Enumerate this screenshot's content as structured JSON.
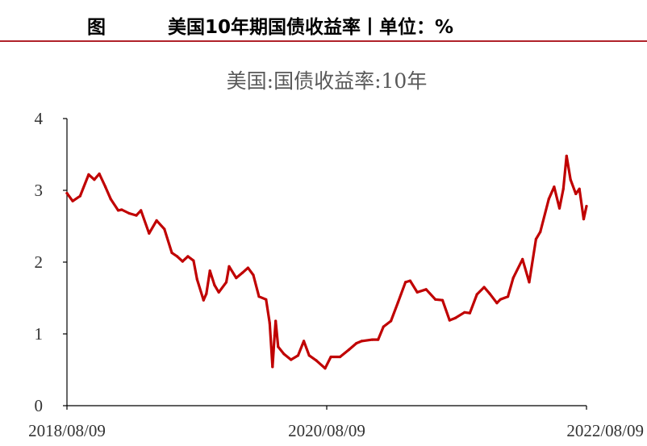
{
  "header": {
    "label": "图",
    "title": "美国10年期国债收益率丨单位：%",
    "accent_color": "#b0222a"
  },
  "chart_data": {
    "type": "line",
    "title": "美国:国债收益率:10年",
    "xlabel": "",
    "ylabel": "",
    "x_range": [
      "2018-08-09",
      "2022-08-09"
    ],
    "x_ticks": [
      "2018/08/09",
      "2020/08/09",
      "2022/08/09"
    ],
    "ylim": [
      0,
      4
    ],
    "y_ticks": [
      "0",
      "1",
      "2",
      "3",
      "4"
    ],
    "grid": false,
    "legend": "none",
    "series": [
      {
        "color": "#c00000",
        "points": [
          [
            "2018-08-09",
            2.96
          ],
          [
            "2018-08-25",
            2.85
          ],
          [
            "2018-09-15",
            2.92
          ],
          [
            "2018-10-09",
            3.22
          ],
          [
            "2018-10-25",
            3.15
          ],
          [
            "2018-11-08",
            3.23
          ],
          [
            "2018-11-25",
            3.05
          ],
          [
            "2018-12-10",
            2.88
          ],
          [
            "2018-12-31",
            2.72
          ],
          [
            "2019-01-10",
            2.73
          ],
          [
            "2019-01-31",
            2.68
          ],
          [
            "2019-02-20",
            2.65
          ],
          [
            "2019-03-05",
            2.72
          ],
          [
            "2019-03-28",
            2.4
          ],
          [
            "2019-04-18",
            2.58
          ],
          [
            "2019-05-10",
            2.46
          ],
          [
            "2019-05-31",
            2.13
          ],
          [
            "2019-06-15",
            2.08
          ],
          [
            "2019-06-30",
            2.01
          ],
          [
            "2019-07-15",
            2.08
          ],
          [
            "2019-07-31",
            2.02
          ],
          [
            "2019-08-10",
            1.76
          ],
          [
            "2019-08-28",
            1.47
          ],
          [
            "2019-09-05",
            1.56
          ],
          [
            "2019-09-15",
            1.88
          ],
          [
            "2019-09-28",
            1.68
          ],
          [
            "2019-10-10",
            1.58
          ],
          [
            "2019-10-31",
            1.72
          ],
          [
            "2019-11-08",
            1.94
          ],
          [
            "2019-11-28",
            1.78
          ],
          [
            "2019-12-15",
            1.85
          ],
          [
            "2019-12-31",
            1.92
          ],
          [
            "2020-01-15",
            1.82
          ],
          [
            "2020-01-31",
            1.52
          ],
          [
            "2020-02-20",
            1.48
          ],
          [
            "2020-03-01",
            1.15
          ],
          [
            "2020-03-09",
            0.54
          ],
          [
            "2020-03-15",
            0.98
          ],
          [
            "2020-03-18",
            1.18
          ],
          [
            "2020-03-25",
            0.82
          ],
          [
            "2020-04-10",
            0.72
          ],
          [
            "2020-04-30",
            0.64
          ],
          [
            "2020-05-20",
            0.7
          ],
          [
            "2020-06-05",
            0.9
          ],
          [
            "2020-06-20",
            0.7
          ],
          [
            "2020-07-10",
            0.63
          ],
          [
            "2020-08-04",
            0.52
          ],
          [
            "2020-08-20",
            0.68
          ],
          [
            "2020-09-15",
            0.68
          ],
          [
            "2020-10-10",
            0.78
          ],
          [
            "2020-10-31",
            0.87
          ],
          [
            "2020-11-15",
            0.9
          ],
          [
            "2020-12-15",
            0.92
          ],
          [
            "2020-12-31",
            0.92
          ],
          [
            "2021-01-15",
            1.1
          ],
          [
            "2021-02-05",
            1.18
          ],
          [
            "2021-02-25",
            1.44
          ],
          [
            "2021-03-18",
            1.72
          ],
          [
            "2021-03-31",
            1.74
          ],
          [
            "2021-04-20",
            1.58
          ],
          [
            "2021-05-15",
            1.62
          ],
          [
            "2021-06-10",
            1.48
          ],
          [
            "2021-06-30",
            1.47
          ],
          [
            "2021-07-20",
            1.19
          ],
          [
            "2021-08-05",
            1.22
          ],
          [
            "2021-08-31",
            1.3
          ],
          [
            "2021-09-15",
            1.29
          ],
          [
            "2021-10-05",
            1.55
          ],
          [
            "2021-10-25",
            1.65
          ],
          [
            "2021-11-10",
            1.56
          ],
          [
            "2021-11-30",
            1.43
          ],
          [
            "2021-12-10",
            1.48
          ],
          [
            "2021-12-31",
            1.52
          ],
          [
            "2022-01-15",
            1.78
          ],
          [
            "2022-02-10",
            2.04
          ],
          [
            "2022-03-01",
            1.72
          ],
          [
            "2022-03-20",
            2.32
          ],
          [
            "2022-04-01",
            2.42
          ],
          [
            "2022-04-25",
            2.88
          ],
          [
            "2022-05-10",
            3.05
          ],
          [
            "2022-05-25",
            2.75
          ],
          [
            "2022-06-05",
            3.02
          ],
          [
            "2022-06-14",
            3.48
          ],
          [
            "2022-06-25",
            3.15
          ],
          [
            "2022-07-10",
            2.95
          ],
          [
            "2022-07-20",
            3.02
          ],
          [
            "2022-08-01",
            2.6
          ],
          [
            "2022-08-09",
            2.78
          ]
        ]
      }
    ]
  }
}
